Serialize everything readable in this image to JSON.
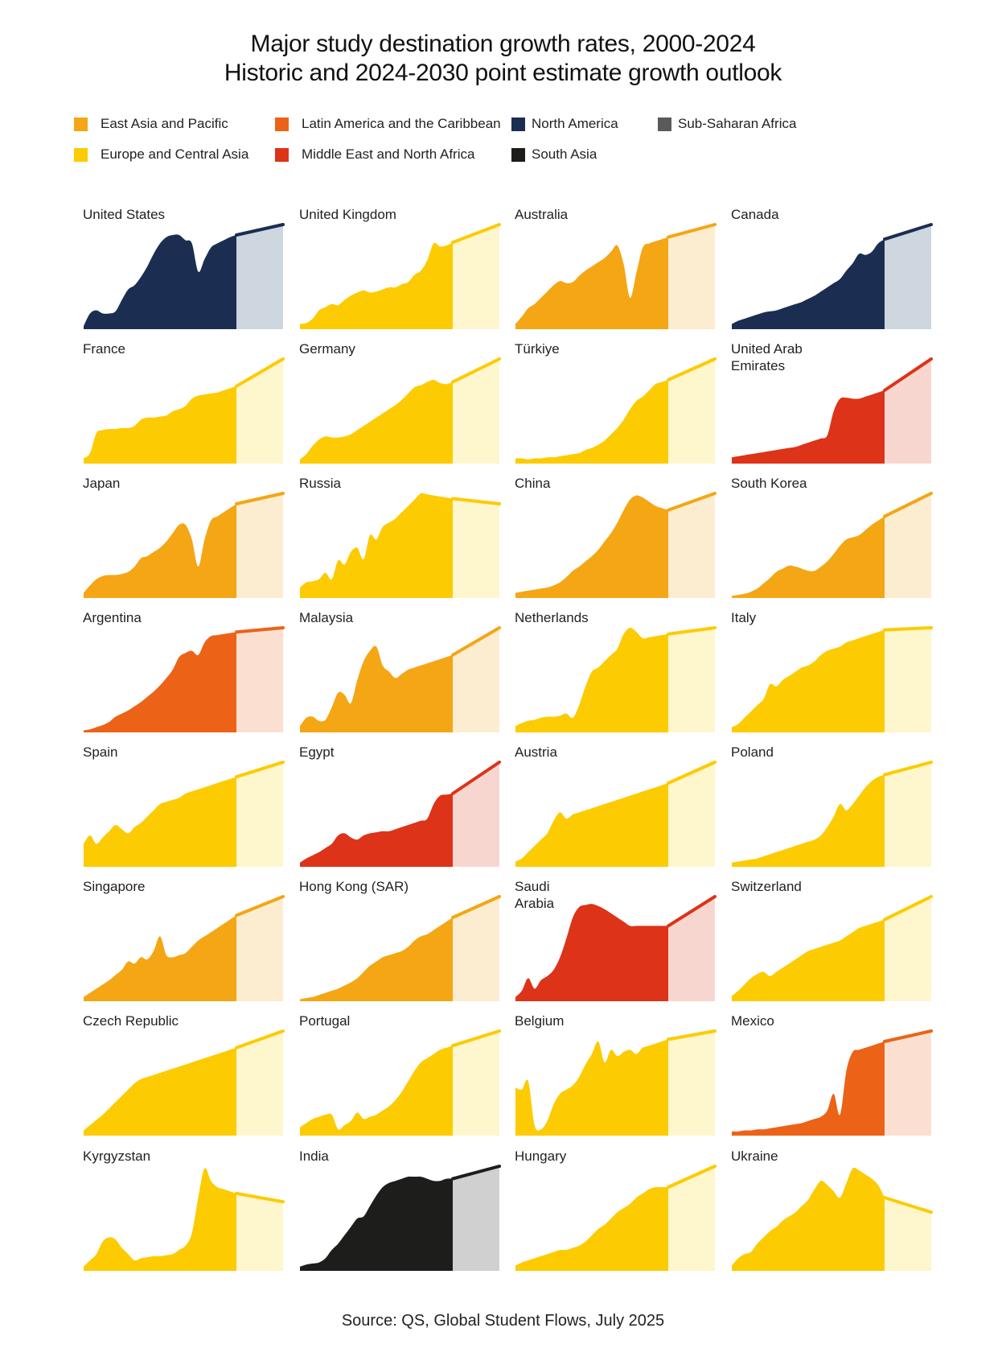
{
  "title_line1": "Major study destination growth rates, 2000-2024",
  "title_line2": "Historic and 2024-2030 point estimate growth outlook",
  "source": "Source: QS, Global Student Flows, July 2025",
  "colors": {
    "East Asia and Pacific": {
      "main": "#F4A615",
      "light": "#FCEDD0"
    },
    "Europe and Central Asia": {
      "main": "#FDCB02",
      "light": "#FEF6CC"
    },
    "Latin America and the Caribbean": {
      "main": "#EC6317",
      "light": "#FBE0D1"
    },
    "Middle East and North Africa": {
      "main": "#DD3318",
      "light": "#F8D6D0"
    },
    "North America": {
      "main": "#1B2E52",
      "light": "#CED6DF"
    },
    "South Asia": {
      "main": "#1D1D1B",
      "light": "#D0D0D0"
    },
    "Sub-Saharan Africa": {
      "main": "#5A5A5A",
      "light": "#DEDEDE"
    }
  },
  "legend": [
    {
      "label": "East Asia and Pacific",
      "color": "#F4A615"
    },
    {
      "label": "Europe and Central Asia",
      "color": "#FDCB02"
    },
    {
      "label": "Latin America and the Caribbean",
      "color": "#EC6317"
    },
    {
      "label": "Middle East and North Africa",
      "color": "#DD3318"
    },
    {
      "label": "North America",
      "color": "#1B2E52"
    },
    {
      "label": "South Asia",
      "color": "#1D1D1B"
    },
    {
      "label": "Sub-Saharan Africa",
      "color": "#5A5A5A"
    }
  ],
  "chart_data": {
    "type": "area",
    "layout": "small multiples, 8 rows x 4 columns",
    "title": "Major study destination growth rates, 2000-2024 / Historic and 2024-2030 point estimate growth outlook",
    "x_historic": [
      2000,
      2001,
      2002,
      2003,
      2004,
      2005,
      2006,
      2007,
      2008,
      2009,
      2010,
      2011,
      2012,
      2013,
      2014,
      2015,
      2016,
      2017,
      2018,
      2019,
      2020,
      2021,
      2022,
      2023,
      2024
    ],
    "x_outlook": [
      2024,
      2030
    ],
    "value_scale": "relative index, each panel scaled to its own maximum = 1",
    "series": [
      {
        "name": "United States",
        "region": "North America",
        "historic": [
          0.03,
          0.15,
          0.18,
          0.15,
          0.15,
          0.17,
          0.28,
          0.38,
          0.42,
          0.5,
          0.6,
          0.72,
          0.82,
          0.88,
          0.9,
          0.9,
          0.85,
          0.82,
          0.55,
          0.67,
          0.78,
          0.82,
          0.85,
          0.88,
          0.9
        ],
        "outlook": 1.0
      },
      {
        "name": "United Kingdom",
        "region": "Europe and Central Asia",
        "historic": [
          0.05,
          0.06,
          0.1,
          0.18,
          0.21,
          0.24,
          0.23,
          0.28,
          0.32,
          0.35,
          0.37,
          0.35,
          0.36,
          0.38,
          0.4,
          0.4,
          0.43,
          0.45,
          0.52,
          0.56,
          0.66,
          0.82,
          0.79,
          0.8,
          0.83
        ],
        "outlook": 1.0
      },
      {
        "name": "Australia",
        "region": "East Asia and Pacific",
        "historic": [
          0.05,
          0.12,
          0.2,
          0.24,
          0.3,
          0.36,
          0.42,
          0.46,
          0.44,
          0.45,
          0.51,
          0.56,
          0.6,
          0.64,
          0.68,
          0.74,
          0.8,
          0.62,
          0.3,
          0.54,
          0.78,
          0.82,
          0.84,
          0.86,
          0.88
        ],
        "outlook": 1.0
      },
      {
        "name": "Canada",
        "region": "North America",
        "historic": [
          0.05,
          0.08,
          0.1,
          0.12,
          0.14,
          0.16,
          0.17,
          0.18,
          0.2,
          0.22,
          0.24,
          0.26,
          0.29,
          0.32,
          0.36,
          0.4,
          0.44,
          0.48,
          0.56,
          0.63,
          0.72,
          0.71,
          0.74,
          0.82,
          0.86
        ],
        "outlook": 1.0
      },
      {
        "name": "France",
        "region": "Europe and Central Asia",
        "historic": [
          0.05,
          0.1,
          0.29,
          0.32,
          0.33,
          0.33,
          0.34,
          0.34,
          0.36,
          0.42,
          0.44,
          0.44,
          0.45,
          0.46,
          0.5,
          0.52,
          0.55,
          0.62,
          0.65,
          0.66,
          0.67,
          0.68,
          0.7,
          0.72,
          0.74
        ],
        "outlook": 1.0
      },
      {
        "name": "Germany",
        "region": "Europe and Central Asia",
        "historic": [
          0.04,
          0.09,
          0.17,
          0.23,
          0.26,
          0.25,
          0.25,
          0.26,
          0.28,
          0.32,
          0.36,
          0.4,
          0.44,
          0.48,
          0.52,
          0.56,
          0.61,
          0.67,
          0.73,
          0.75,
          0.78,
          0.8,
          0.77,
          0.76,
          0.78
        ],
        "outlook": 1.0
      },
      {
        "name": "Türkiye",
        "region": "Europe and Central Asia",
        "historic": [
          0.05,
          0.05,
          0.04,
          0.05,
          0.05,
          0.06,
          0.06,
          0.07,
          0.08,
          0.09,
          0.1,
          0.13,
          0.15,
          0.18,
          0.22,
          0.28,
          0.34,
          0.42,
          0.52,
          0.6,
          0.64,
          0.7,
          0.76,
          0.78,
          0.8
        ],
        "outlook": 1.0
      },
      {
        "name": "United Arab Emirates",
        "region": "Middle East and North Africa",
        "historic": [
          0.06,
          0.07,
          0.08,
          0.09,
          0.1,
          0.11,
          0.12,
          0.13,
          0.14,
          0.15,
          0.16,
          0.18,
          0.2,
          0.22,
          0.24,
          0.27,
          0.5,
          0.62,
          0.63,
          0.62,
          0.62,
          0.64,
          0.66,
          0.68,
          0.7
        ],
        "outlook": 1.0
      },
      {
        "name": "Japan",
        "region": "East Asia and Pacific",
        "historic": [
          0.05,
          0.12,
          0.18,
          0.21,
          0.22,
          0.22,
          0.23,
          0.25,
          0.3,
          0.38,
          0.4,
          0.44,
          0.48,
          0.54,
          0.62,
          0.7,
          0.7,
          0.56,
          0.3,
          0.56,
          0.74,
          0.78,
          0.82,
          0.86,
          0.9
        ],
        "outlook": 1.0
      },
      {
        "name": "Russia",
        "region": "Europe and Central Asia",
        "historic": [
          0.1,
          0.15,
          0.16,
          0.18,
          0.24,
          0.18,
          0.36,
          0.32,
          0.44,
          0.48,
          0.37,
          0.6,
          0.56,
          0.68,
          0.72,
          0.76,
          0.82,
          0.88,
          0.94,
          1.0,
          0.99,
          0.98,
          0.97,
          0.96,
          0.95
        ],
        "outlook": 0.9
      },
      {
        "name": "China",
        "region": "East Asia and Pacific",
        "historic": [
          0.05,
          0.06,
          0.07,
          0.08,
          0.09,
          0.1,
          0.12,
          0.15,
          0.2,
          0.26,
          0.3,
          0.35,
          0.4,
          0.46,
          0.54,
          0.62,
          0.72,
          0.84,
          0.94,
          0.98,
          0.96,
          0.92,
          0.88,
          0.86,
          0.84
        ],
        "outlook": 1.0
      },
      {
        "name": "South Korea",
        "region": "East Asia and Pacific",
        "historic": [
          0.02,
          0.03,
          0.04,
          0.06,
          0.09,
          0.14,
          0.19,
          0.25,
          0.28,
          0.31,
          0.3,
          0.28,
          0.26,
          0.26,
          0.3,
          0.35,
          0.42,
          0.5,
          0.56,
          0.58,
          0.6,
          0.65,
          0.7,
          0.74,
          0.78
        ],
        "outlook": 1.0
      },
      {
        "name": "Argentina",
        "region": "Latin America and the Caribbean",
        "historic": [
          0.02,
          0.03,
          0.05,
          0.07,
          0.1,
          0.15,
          0.18,
          0.21,
          0.25,
          0.29,
          0.34,
          0.39,
          0.45,
          0.52,
          0.6,
          0.72,
          0.76,
          0.78,
          0.74,
          0.86,
          0.92,
          0.93,
          0.94,
          0.95,
          0.96
        ],
        "outlook": 1.0
      },
      {
        "name": "Malaysia",
        "region": "East Asia and Pacific",
        "historic": [
          0.06,
          0.14,
          0.15,
          0.11,
          0.12,
          0.24,
          0.38,
          0.36,
          0.28,
          0.5,
          0.68,
          0.78,
          0.82,
          0.64,
          0.58,
          0.52,
          0.56,
          0.6,
          0.62,
          0.64,
          0.66,
          0.68,
          0.7,
          0.72,
          0.74
        ],
        "outlook": 1.0
      },
      {
        "name": "Netherlands",
        "region": "Europe and Central Asia",
        "historic": [
          0.06,
          0.09,
          0.11,
          0.12,
          0.14,
          0.15,
          0.15,
          0.16,
          0.18,
          0.14,
          0.26,
          0.44,
          0.58,
          0.62,
          0.68,
          0.74,
          0.8,
          0.94,
          1.0,
          0.96,
          0.9,
          0.91,
          0.92,
          0.93,
          0.94
        ],
        "outlook": 1.0
      },
      {
        "name": "Italy",
        "region": "Europe and Central Asia",
        "historic": [
          0.05,
          0.08,
          0.14,
          0.2,
          0.26,
          0.32,
          0.46,
          0.44,
          0.5,
          0.54,
          0.58,
          0.62,
          0.64,
          0.68,
          0.74,
          0.78,
          0.8,
          0.82,
          0.86,
          0.88,
          0.9,
          0.92,
          0.94,
          0.96,
          0.98
        ],
        "outlook": 1.0
      },
      {
        "name": "Spain",
        "region": "Europe and Central Asia",
        "historic": [
          0.22,
          0.3,
          0.22,
          0.28,
          0.34,
          0.4,
          0.36,
          0.32,
          0.38,
          0.42,
          0.48,
          0.54,
          0.6,
          0.62,
          0.64,
          0.66,
          0.7,
          0.72,
          0.74,
          0.76,
          0.78,
          0.8,
          0.82,
          0.84,
          0.86
        ],
        "outlook": 1.0
      },
      {
        "name": "Egypt",
        "region": "Middle East and North Africa",
        "historic": [
          0.04,
          0.08,
          0.11,
          0.14,
          0.18,
          0.22,
          0.3,
          0.32,
          0.28,
          0.26,
          0.3,
          0.32,
          0.33,
          0.34,
          0.34,
          0.36,
          0.38,
          0.4,
          0.42,
          0.44,
          0.46,
          0.6,
          0.68,
          0.69,
          0.7
        ],
        "outlook": 1.0
      },
      {
        "name": "Austria",
        "region": "Europe and Central Asia",
        "historic": [
          0.05,
          0.08,
          0.14,
          0.2,
          0.26,
          0.32,
          0.44,
          0.52,
          0.46,
          0.5,
          0.52,
          0.54,
          0.56,
          0.58,
          0.6,
          0.62,
          0.64,
          0.66,
          0.68,
          0.7,
          0.72,
          0.74,
          0.76,
          0.78,
          0.8
        ],
        "outlook": 1.0
      },
      {
        "name": "Poland",
        "region": "Europe and Central Asia",
        "historic": [
          0.04,
          0.05,
          0.06,
          0.07,
          0.08,
          0.1,
          0.12,
          0.14,
          0.16,
          0.18,
          0.2,
          0.22,
          0.24,
          0.26,
          0.3,
          0.38,
          0.48,
          0.6,
          0.54,
          0.6,
          0.68,
          0.76,
          0.82,
          0.86,
          0.88
        ],
        "outlook": 1.0
      },
      {
        "name": "Singapore",
        "region": "East Asia and Pacific",
        "historic": [
          0.04,
          0.08,
          0.12,
          0.16,
          0.2,
          0.25,
          0.3,
          0.38,
          0.36,
          0.42,
          0.4,
          0.48,
          0.62,
          0.44,
          0.42,
          0.44,
          0.46,
          0.52,
          0.58,
          0.62,
          0.66,
          0.7,
          0.74,
          0.78,
          0.82
        ],
        "outlook": 1.0
      },
      {
        "name": "Hong Kong (SAR)",
        "region": "East Asia and Pacific",
        "historic": [
          0.02,
          0.03,
          0.04,
          0.06,
          0.08,
          0.1,
          0.12,
          0.15,
          0.18,
          0.22,
          0.28,
          0.34,
          0.38,
          0.42,
          0.44,
          0.46,
          0.48,
          0.52,
          0.58,
          0.62,
          0.64,
          0.68,
          0.72,
          0.76,
          0.8
        ],
        "outlook": 1.0
      },
      {
        "name": "Saudi Arabia",
        "region": "Middle East and North Africa",
        "historic": [
          0.04,
          0.1,
          0.22,
          0.12,
          0.2,
          0.24,
          0.3,
          0.42,
          0.6,
          0.8,
          0.9,
          0.92,
          0.93,
          0.91,
          0.88,
          0.84,
          0.8,
          0.76,
          0.72,
          0.72,
          0.72,
          0.72,
          0.72,
          0.72,
          0.72
        ],
        "outlook": 1.0
      },
      {
        "name": "Switzerland",
        "region": "Europe and Central Asia",
        "historic": [
          0.05,
          0.1,
          0.16,
          0.22,
          0.26,
          0.28,
          0.24,
          0.28,
          0.32,
          0.36,
          0.4,
          0.44,
          0.48,
          0.5,
          0.52,
          0.54,
          0.56,
          0.58,
          0.62,
          0.66,
          0.7,
          0.72,
          0.74,
          0.76,
          0.78
        ],
        "outlook": 1.0
      },
      {
        "name": "Czech Republic",
        "region": "Europe and Central Asia",
        "historic": [
          0.05,
          0.1,
          0.15,
          0.2,
          0.26,
          0.32,
          0.38,
          0.44,
          0.5,
          0.54,
          0.56,
          0.58,
          0.6,
          0.62,
          0.64,
          0.66,
          0.68,
          0.7,
          0.72,
          0.74,
          0.76,
          0.78,
          0.8,
          0.82,
          0.84
        ],
        "outlook": 1.0
      },
      {
        "name": "Portugal",
        "region": "Europe and Central Asia",
        "historic": [
          0.08,
          0.12,
          0.16,
          0.18,
          0.2,
          0.2,
          0.06,
          0.1,
          0.14,
          0.22,
          0.16,
          0.18,
          0.2,
          0.24,
          0.28,
          0.34,
          0.42,
          0.52,
          0.62,
          0.7,
          0.74,
          0.78,
          0.82,
          0.84,
          0.86
        ],
        "outlook": 1.0
      },
      {
        "name": "Belgium",
        "region": "Europe and Central Asia",
        "historic": [
          0.46,
          0.44,
          0.52,
          0.1,
          0.06,
          0.14,
          0.3,
          0.4,
          0.44,
          0.48,
          0.56,
          0.68,
          0.78,
          0.9,
          0.7,
          0.82,
          0.76,
          0.8,
          0.82,
          0.78,
          0.84,
          0.86,
          0.88,
          0.9,
          0.92
        ],
        "outlook": 1.0
      },
      {
        "name": "Mexico",
        "region": "Latin America and the Caribbean",
        "historic": [
          0.04,
          0.04,
          0.05,
          0.05,
          0.06,
          0.06,
          0.07,
          0.08,
          0.09,
          0.1,
          0.11,
          0.12,
          0.14,
          0.16,
          0.18,
          0.24,
          0.4,
          0.2,
          0.62,
          0.8,
          0.82,
          0.84,
          0.86,
          0.88,
          0.9
        ],
        "outlook": 1.0
      },
      {
        "name": "Kyrgyzstan",
        "region": "Europe and Central Asia",
        "historic": [
          0.04,
          0.1,
          0.16,
          0.28,
          0.32,
          0.3,
          0.22,
          0.16,
          0.1,
          0.12,
          0.13,
          0.14,
          0.14,
          0.15,
          0.16,
          0.2,
          0.24,
          0.36,
          0.7,
          0.98,
          0.86,
          0.8,
          0.78,
          0.76,
          0.74
        ],
        "outlook": 0.66
      },
      {
        "name": "India",
        "region": "South Asia",
        "historic": [
          0.04,
          0.06,
          0.07,
          0.08,
          0.12,
          0.2,
          0.26,
          0.34,
          0.42,
          0.5,
          0.52,
          0.62,
          0.72,
          0.8,
          0.84,
          0.86,
          0.88,
          0.9,
          0.9,
          0.9,
          0.88,
          0.86,
          0.86,
          0.88,
          0.88
        ],
        "outlook": 1.0
      },
      {
        "name": "Hungary",
        "region": "Europe and Central Asia",
        "historic": [
          0.05,
          0.08,
          0.1,
          0.12,
          0.14,
          0.16,
          0.18,
          0.2,
          0.2,
          0.22,
          0.24,
          0.28,
          0.34,
          0.4,
          0.44,
          0.5,
          0.56,
          0.6,
          0.64,
          0.7,
          0.74,
          0.78,
          0.8,
          0.8,
          0.8
        ],
        "outlook": 1.0
      },
      {
        "name": "Ukraine",
        "region": "Europe and Central Asia",
        "historic": [
          0.05,
          0.12,
          0.16,
          0.18,
          0.26,
          0.32,
          0.38,
          0.42,
          0.48,
          0.52,
          0.56,
          0.62,
          0.68,
          0.78,
          0.86,
          0.82,
          0.76,
          0.7,
          0.84,
          0.98,
          0.96,
          0.92,
          0.88,
          0.82,
          0.7
        ],
        "outlook": 0.56
      }
    ]
  }
}
